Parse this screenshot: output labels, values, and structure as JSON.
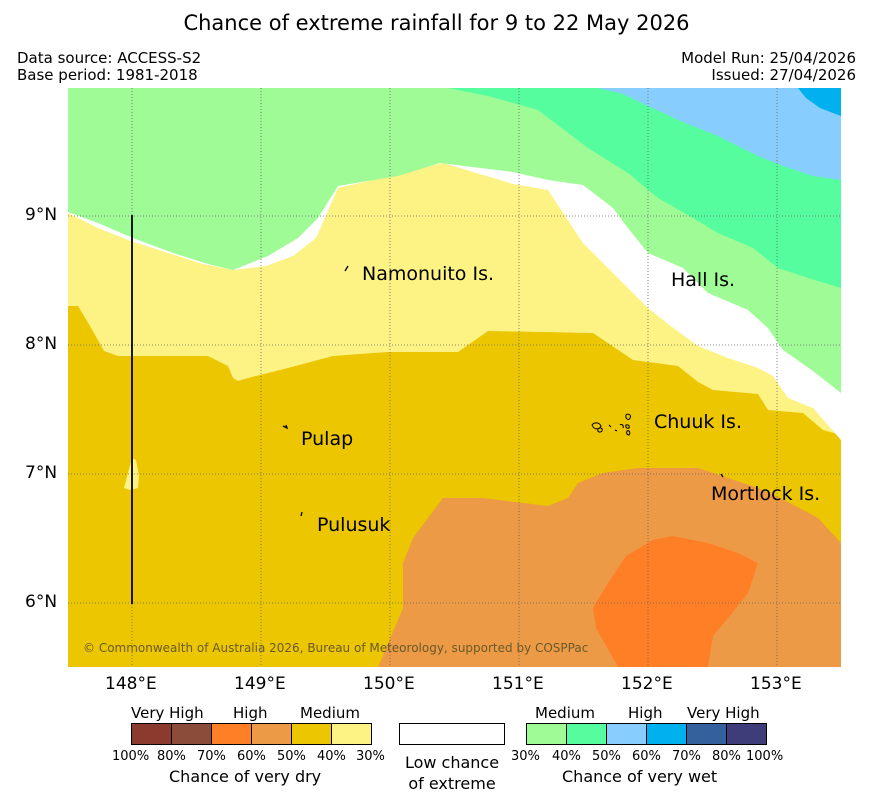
{
  "title": "Chance of extreme rainfall for 9 to 22 May 2026",
  "data_source": "Data source: ACCESS-S2",
  "base_period": "Base period: 1981-2018",
  "model_run": "Model Run: 25/04/2026",
  "issued": "Issued: 27/04/2026",
  "copyright": "© Commonwealth of Australia 2026, Bureau of Meteorology, supported by COSPPac",
  "axes": {
    "lat_labels": [
      "9°N",
      "8°N",
      "7°N",
      "6°N"
    ],
    "lon_labels": [
      "148°E",
      "149°E",
      "150°E",
      "151°E",
      "152°E",
      "153°E"
    ]
  },
  "places": {
    "namonuito": "Namonuito Is.",
    "hall": "Hall Is.",
    "pulap": "Pulap",
    "chuuk": "Chuuk Is.",
    "mortlock": "Mortlock Is.",
    "pulusuk": "Pulusuk"
  },
  "legend": {
    "dry": {
      "headings": [
        "Very High",
        "High",
        "Medium"
      ],
      "percent_labels": [
        "100%",
        "80%",
        "70%",
        "60%",
        "50%",
        "40%",
        "30%"
      ],
      "colors": [
        "#8b3a2e",
        "#8b4d3a",
        "#ff7f27",
        "#ec9a45",
        "#ecc600",
        "#fdf384"
      ],
      "caption": "Chance of very dry"
    },
    "neutral": {
      "caption_line1": "Low chance",
      "caption_line2": "of extreme",
      "color": "#ffffff"
    },
    "wet": {
      "headings": [
        "Medium",
        "High",
        "Very High"
      ],
      "percent_labels": [
        "30%",
        "40%",
        "50%",
        "60%",
        "70%",
        "80%",
        "100%"
      ],
      "colors": [
        "#9ffb96",
        "#55fd9f",
        "#87cefe",
        "#00b0ef",
        "#34609d",
        "#3e3d7a"
      ],
      "caption": "Chance of very wet"
    }
  }
}
